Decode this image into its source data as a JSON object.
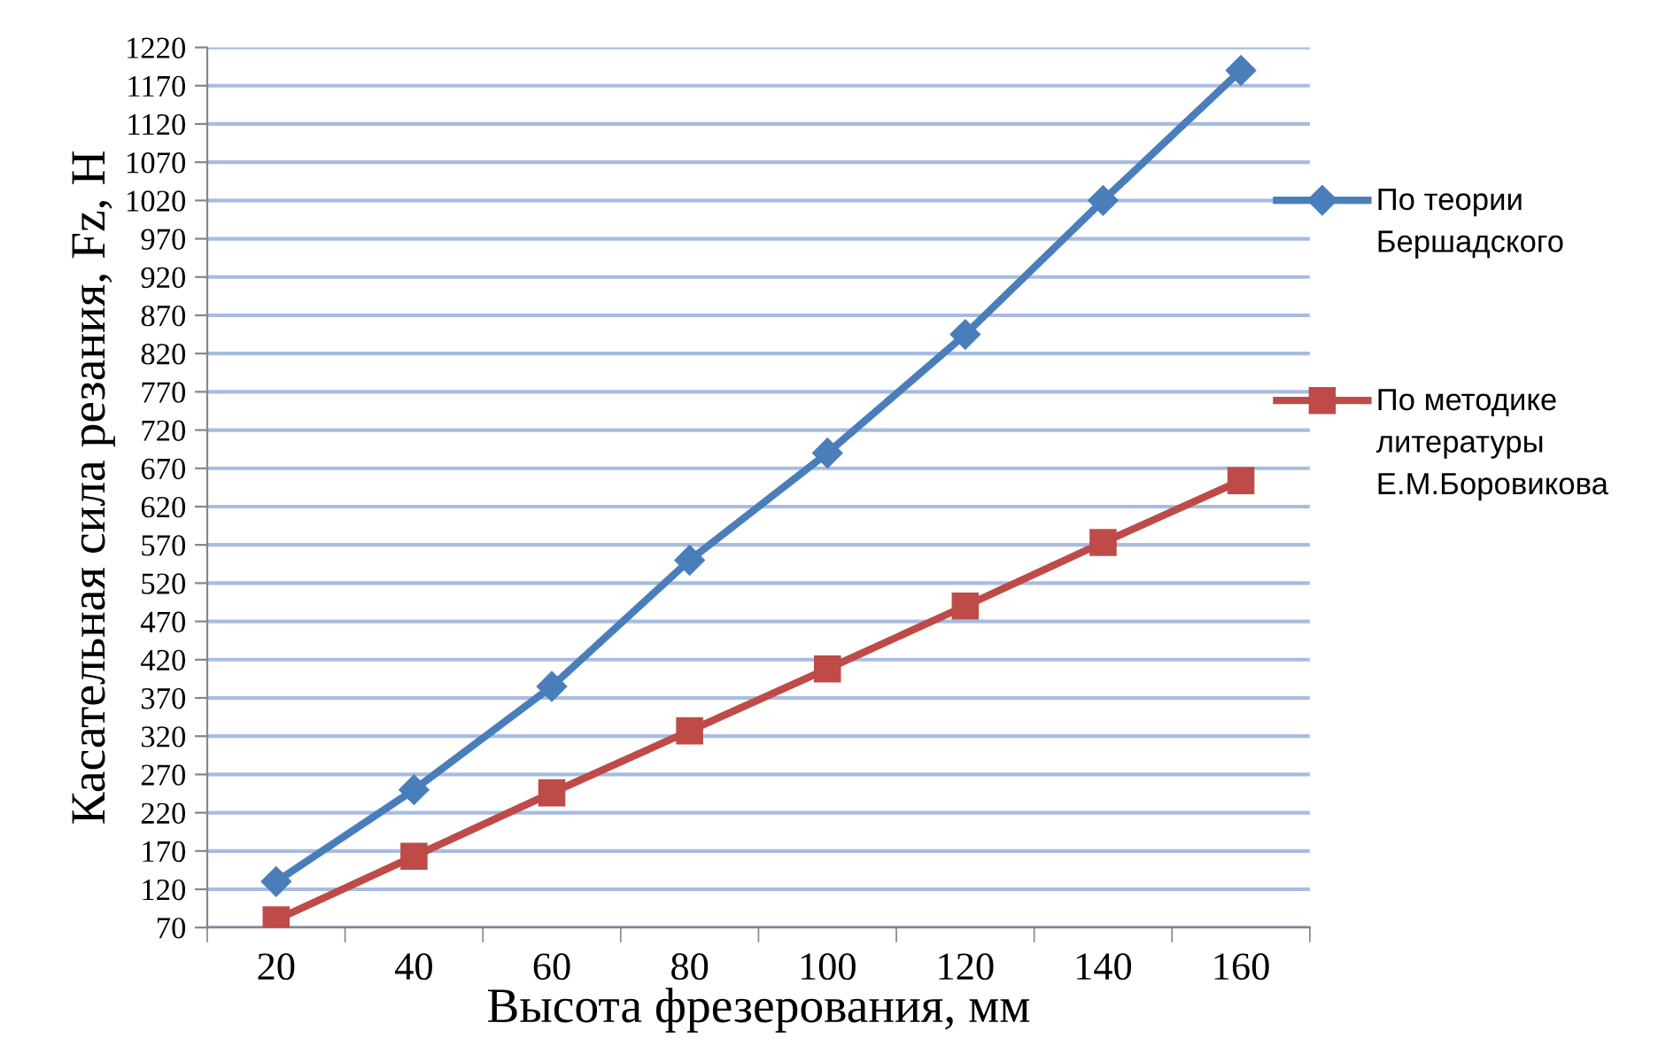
{
  "chart_data": {
    "type": "line",
    "xlabel": "Высота фрезерования, мм",
    "ylabel": "Касательная сила резания, Fz, Н",
    "categories": [
      "20",
      "40",
      "60",
      "80",
      "100",
      "120",
      "140",
      "160"
    ],
    "series": [
      {
        "name": "По теории Бершадского",
        "color": "#4a7ebb",
        "marker": "diamond",
        "values": [
          130,
          250,
          385,
          550,
          690,
          845,
          1020,
          1190
        ]
      },
      {
        "name": "По методике литературы Е.М.Боровикова",
        "color": "#be4b48",
        "marker": "square",
        "values": [
          80,
          163,
          246,
          327,
          408,
          490,
          573,
          654
        ]
      }
    ],
    "ylim": [
      70,
      1220
    ],
    "yticks": [
      70,
      120,
      170,
      220,
      270,
      320,
      370,
      420,
      470,
      520,
      570,
      620,
      670,
      720,
      770,
      820,
      870,
      920,
      970,
      1020,
      1070,
      1120,
      1170,
      1220
    ],
    "grid": "y",
    "legend": "right",
    "line_style": "solid"
  }
}
